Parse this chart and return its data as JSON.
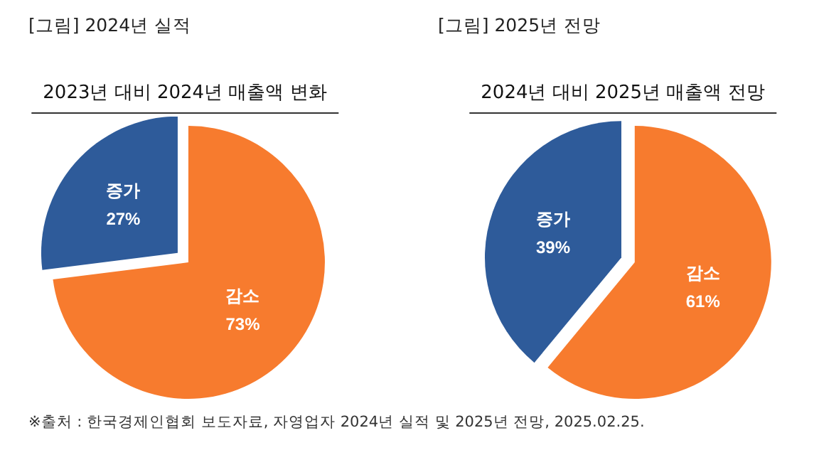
{
  "chart_data": [
    {
      "type": "pie",
      "title": "[그림] 2024년 실적",
      "subtitle": "2023년 대비 2024년 매출액 변화",
      "categories": [
        "증가",
        "감소"
      ],
      "values": [
        27,
        73
      ],
      "value_labels": [
        "27%",
        "73%"
      ],
      "colors": [
        "#2e5b9a",
        "#f77b2e"
      ],
      "legend": false,
      "annotations": [
        "※출처 : 한국경제인협회 보도자료, 자영업자 2024년 실적 및 2025년 전망, 2025.02.25."
      ]
    },
    {
      "type": "pie",
      "title": "[그림] 2025년 전망",
      "subtitle": "2024년 대비 2025년 매출액 전망",
      "categories": [
        "증가",
        "감소"
      ],
      "values": [
        39,
        61
      ],
      "value_labels": [
        "39%",
        "61%"
      ],
      "colors": [
        "#2e5b9a",
        "#f77b2e"
      ],
      "legend": false
    }
  ]
}
